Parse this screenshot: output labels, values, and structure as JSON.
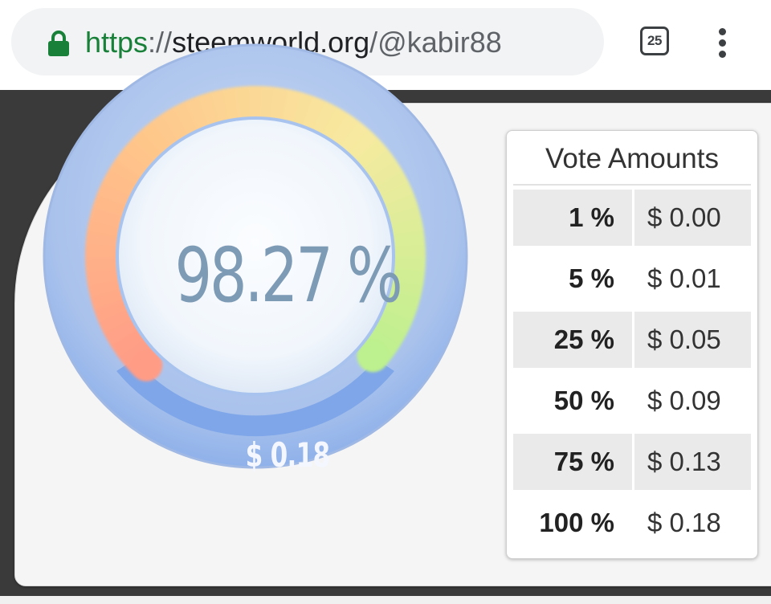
{
  "browser": {
    "url_scheme": "https",
    "url_separator": "://",
    "url_host": "steemworld.org",
    "url_path": "/@kabir88",
    "tab_count": "25",
    "icons": [
      "lock-icon",
      "tabs-icon",
      "more-vert-icon"
    ]
  },
  "gauge": {
    "percent_text": "98.27 %",
    "value_text": "$ 0.18",
    "fill_fraction": 0.9827
  },
  "vote_table": {
    "title": "Vote Amounts",
    "rows": [
      {
        "percent": "1 %",
        "amount": "$ 0.00"
      },
      {
        "percent": "5 %",
        "amount": "$ 0.01"
      },
      {
        "percent": "25 %",
        "amount": "$ 0.05"
      },
      {
        "percent": "50 %",
        "amount": "$ 0.09"
      },
      {
        "percent": "75 %",
        "amount": "$ 0.13"
      },
      {
        "percent": "100 %",
        "amount": "$ 0.18"
      }
    ]
  },
  "colors": {
    "secure_green": "#188038",
    "gauge_blue": "#7fa6e8",
    "gauge_red": "#ff9c86",
    "gauge_orange": "#ffc58a",
    "gauge_yellow": "#f7eaa0",
    "gauge_green": "#bdf08e",
    "percent_text": "#7e9bb6",
    "page_dark": "#3a3a3a"
  }
}
